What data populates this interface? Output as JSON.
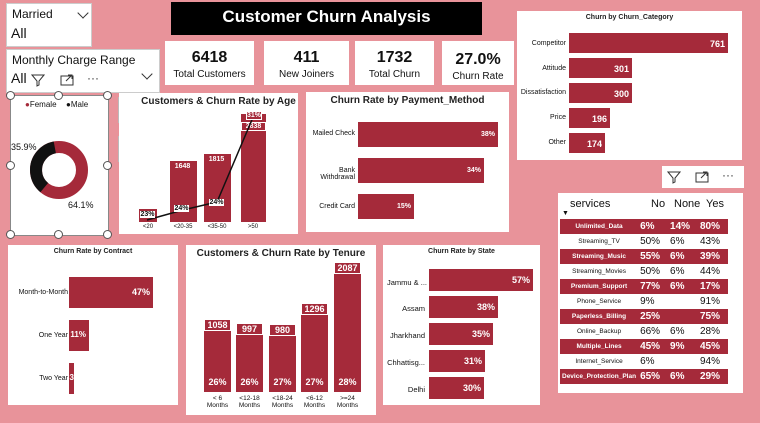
{
  "title": "Customer Churn Analysis",
  "colors": {
    "bar": "#a52a3a",
    "bg": "#e8939a"
  },
  "slicers": {
    "married": {
      "label": "Married",
      "value": "All"
    },
    "charge": {
      "label": "Monthly Charge Range",
      "value": "All"
    }
  },
  "kpis": [
    {
      "value": "6418",
      "label": "Total Customers"
    },
    {
      "value": "411",
      "label": "New Joiners"
    },
    {
      "value": "1732",
      "label": "Total Churn"
    },
    {
      "value": "27.0%",
      "label": "Churn Rate"
    }
  ],
  "gender": {
    "legend_female": "Female",
    "legend_male": "Male",
    "female_pct": "35.9%",
    "male_pct": "64.1%"
  },
  "age": {
    "title": "Customers & Churn Rate by Age",
    "categories": [
      "<20",
      "<20-35",
      "<35-50",
      ">50"
    ],
    "counts": [
      "",
      "1648",
      "1815",
      "2838"
    ],
    "rates": [
      "23%",
      "24%",
      "24%",
      "31%"
    ]
  },
  "payment": {
    "title": "Churn Rate by Payment_Method",
    "categories": [
      "Mailed Check",
      "Bank Withdrawal",
      "Credit Card"
    ],
    "values": [
      "38%",
      "34%",
      "15%"
    ]
  },
  "category": {
    "title": "Churn by Churn_Category",
    "categories": [
      "Competitor",
      "Attitude",
      "Dissatisfaction",
      "Price",
      "Other"
    ],
    "values": [
      "761",
      "301",
      "300",
      "196",
      "174"
    ]
  },
  "contract": {
    "title": "Churn Rate by Contract",
    "categories": [
      "Month-to-Month",
      "One Year",
      "Two Year"
    ],
    "values": [
      "47%",
      "11%",
      "3"
    ]
  },
  "tenure": {
    "title": "Customers & Churn Rate by Tenure",
    "categories": [
      "< 6 Months",
      "<12-18 Months",
      "<18-24 Months",
      "<6-12 Months",
      ">=24 Months"
    ],
    "counts": [
      "1058",
      "997",
      "980",
      "1296",
      "2087"
    ],
    "rates": [
      "26%",
      "26%",
      "27%",
      "27%",
      "28%"
    ]
  },
  "state": {
    "title": "Churn Rate by State",
    "categories": [
      "Jammu & ...",
      "Assam",
      "Jharkhand",
      "Chhattisg...",
      "Delhi"
    ],
    "values": [
      "57%",
      "38%",
      "35%",
      "31%",
      "30%"
    ]
  },
  "services": {
    "header": "services",
    "cols": [
      "No",
      "None",
      "Yes"
    ],
    "rows": [
      {
        "name": "Unlimited_Data",
        "v": [
          "6%",
          "14%",
          "80%"
        ],
        "hi": true
      },
      {
        "name": "Streaming_TV",
        "v": [
          "50%",
          "6%",
          "43%"
        ],
        "hi": false
      },
      {
        "name": "Streaming_Music",
        "v": [
          "55%",
          "6%",
          "39%"
        ],
        "hi": true
      },
      {
        "name": "Streaming_Movies",
        "v": [
          "50%",
          "6%",
          "44%"
        ],
        "hi": false
      },
      {
        "name": "Premium_Support",
        "v": [
          "77%",
          "6%",
          "17%"
        ],
        "hi": true
      },
      {
        "name": "Phone_Service",
        "v": [
          "9%",
          "",
          "91%"
        ],
        "hi": false
      },
      {
        "name": "Paperless_Billing",
        "v": [
          "25%",
          "",
          "75%"
        ],
        "hi": true
      },
      {
        "name": "Online_Backup",
        "v": [
          "66%",
          "6%",
          "28%"
        ],
        "hi": false
      },
      {
        "name": "Multiple_Lines",
        "v": [
          "45%",
          "9%",
          "45%"
        ],
        "hi": true
      },
      {
        "name": "Internet_Service",
        "v": [
          "6%",
          "",
          "94%"
        ],
        "hi": false
      },
      {
        "name": "Device_Protection_Plan",
        "v": [
          "65%",
          "6%",
          "29%"
        ],
        "hi": true
      }
    ]
  }
}
